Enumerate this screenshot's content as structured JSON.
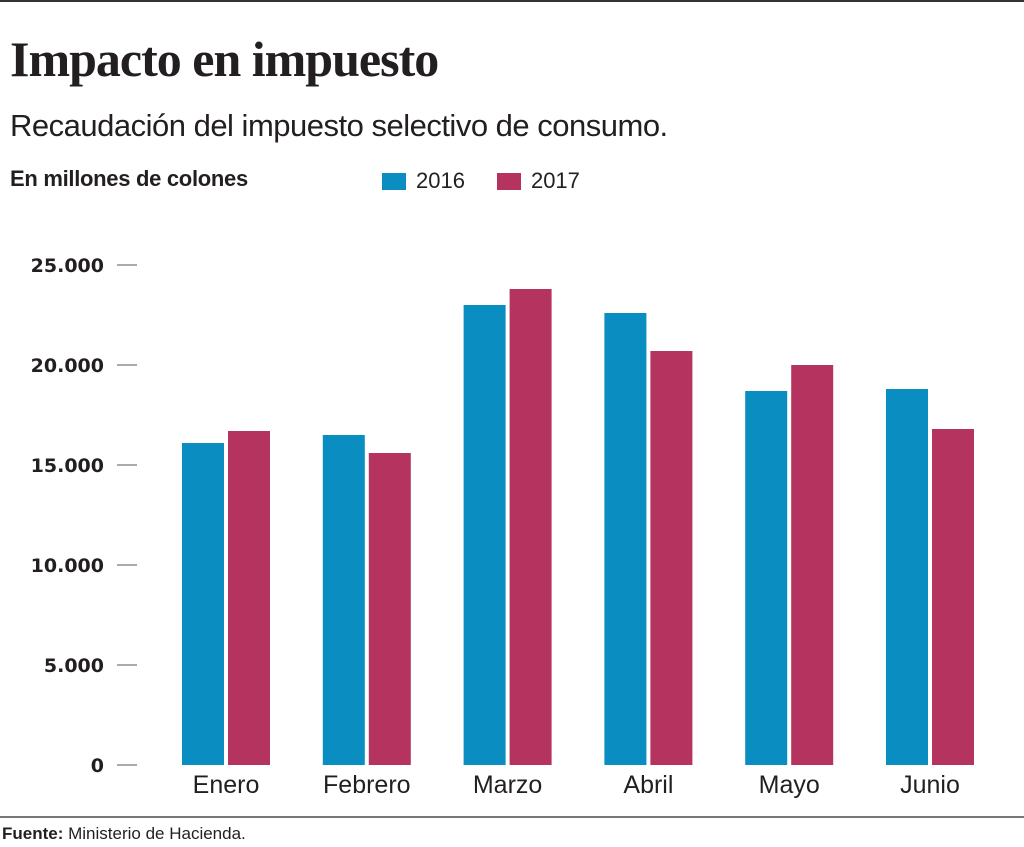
{
  "header": {
    "title": "Impacto en impuesto",
    "subtitle": "Recaudación del impuesto selectivo de consumo.",
    "units": "En millones de colones"
  },
  "legend": [
    {
      "label": "2016",
      "color": "#0a8dc0"
    },
    {
      "label": "2017",
      "color": "#b5345f"
    }
  ],
  "footer": {
    "source_label": "Fuente:",
    "source_text": " Ministerio de Hacienda."
  },
  "chart_data": {
    "type": "bar",
    "title": "Impacto en impuesto",
    "subtitle": "Recaudación del impuesto selectivo de consumo.",
    "xlabel": "",
    "ylabel": "En millones de colones",
    "categories": [
      "Enero",
      "Febrero",
      "Marzo",
      "Abril",
      "Mayo",
      "Junio"
    ],
    "series": [
      {
        "name": "2016",
        "color": "#0a8dc0",
        "values": [
          16100,
          16500,
          23000,
          22600,
          18700,
          18800
        ]
      },
      {
        "name": "2017",
        "color": "#b5345f",
        "values": [
          16700,
          15600,
          23800,
          20700,
          20000,
          16800
        ]
      }
    ],
    "ylim": [
      0,
      25000
    ],
    "yticks": [
      0,
      5000,
      10000,
      15000,
      20000,
      25000
    ],
    "ytick_labels": [
      "0",
      "5.000",
      "10.000",
      "15.000",
      "20.000",
      "25.000"
    ],
    "grid": false,
    "legend_position": "top"
  }
}
